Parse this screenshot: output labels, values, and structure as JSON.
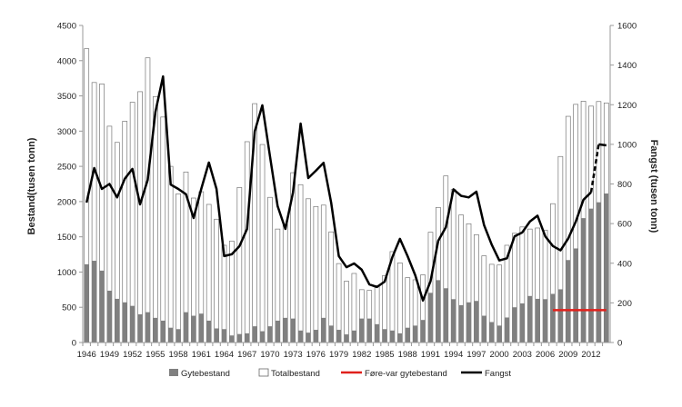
{
  "chart_data": {
    "type": "bar",
    "title": "",
    "xlabel": "",
    "ylabel": "Bestand(tusen tonn)",
    "ylabel_right": "Fangst (tusen tonn)",
    "ylim": [
      0,
      4500
    ],
    "ylim_right": [
      0,
      1600
    ],
    "yticks": [
      0,
      500,
      1000,
      1500,
      2000,
      2500,
      3000,
      3500,
      4000,
      4500
    ],
    "yticks_right": [
      0,
      200,
      400,
      600,
      800,
      1000,
      1200,
      1400,
      1600
    ],
    "xtick_labels": [
      "1946",
      "1949",
      "1952",
      "1955",
      "1958",
      "1961",
      "1964",
      "1967",
      "1970",
      "1973",
      "1976",
      "1979",
      "1982",
      "1985",
      "1988",
      "1991",
      "1994",
      "1997",
      "2000",
      "2003",
      "2006",
      "2009",
      "2012"
    ],
    "legend_position": "bottom",
    "grid": false,
    "colors": {
      "gytebestand": "#808080",
      "totalbestand": "#ffffff",
      "fore_var": "#e0201b",
      "fangst": "#000000"
    },
    "x": [
      1946,
      1947,
      1948,
      1949,
      1950,
      1951,
      1952,
      1953,
      1954,
      1955,
      1956,
      1957,
      1958,
      1959,
      1960,
      1961,
      1962,
      1963,
      1964,
      1965,
      1966,
      1967,
      1968,
      1969,
      1970,
      1971,
      1972,
      1973,
      1974,
      1975,
      1976,
      1977,
      1978,
      1979,
      1980,
      1981,
      1982,
      1983,
      1984,
      1985,
      1986,
      1987,
      1988,
      1989,
      1990,
      1991,
      1992,
      1993,
      1994,
      1995,
      1996,
      1997,
      1998,
      1999,
      2000,
      2001,
      2002,
      2003,
      2004,
      2005,
      2006,
      2007,
      2008,
      2009,
      2010,
      2011,
      2012,
      2013,
      2014
    ],
    "series": [
      {
        "name": "Gytebestand",
        "kind": "bar",
        "axis": "left",
        "values": [
          1110,
          1160,
          1020,
          735,
          620,
          570,
          520,
          400,
          430,
          350,
          310,
          210,
          190,
          430,
          380,
          410,
          310,
          200,
          190,
          100,
          120,
          130,
          230,
          160,
          230,
          310,
          350,
          340,
          170,
          140,
          180,
          350,
          240,
          180,
          115,
          170,
          340,
          340,
          260,
          190,
          170,
          130,
          210,
          240,
          320,
          705,
          885,
          770,
          615,
          530,
          570,
          590,
          380,
          290,
          240,
          355,
          500,
          555,
          660,
          620,
          615,
          690,
          755,
          1170,
          1335,
          1765,
          1900,
          1990,
          2115
        ]
      },
      {
        "name": "Totalbestand",
        "kind": "bar",
        "axis": "left",
        "values": [
          4170,
          3690,
          3670,
          3070,
          2840,
          3140,
          3410,
          3560,
          4040,
          3490,
          3200,
          2500,
          2110,
          2420,
          2050,
          2140,
          1960,
          1750,
          1380,
          1440,
          2200,
          2850,
          3390,
          2810,
          2060,
          1610,
          1680,
          2410,
          2240,
          2040,
          1930,
          1950,
          1570,
          1120,
          870,
          980,
          750,
          740,
          810,
          950,
          1290,
          1130,
          920,
          890,
          960,
          1565,
          1917,
          2364,
          2170,
          1810,
          1685,
          1530,
          1230,
          1110,
          1100,
          1380,
          1550,
          1640,
          1610,
          1625,
          1595,
          1970,
          2640,
          3210,
          3380,
          3425,
          3355,
          3420,
          3400
        ]
      },
      {
        "name": "Føre-var gytebestand",
        "kind": "line",
        "axis": "left",
        "x": [
          2007,
          2014
        ],
        "values": [
          460,
          460
        ]
      },
      {
        "name": "Fangst",
        "kind": "line",
        "axis": "right",
        "dashed_segment": [
          2012,
          2013
        ],
        "values": [
          706,
          880,
          775,
          800,
          732,
          826,
          876,
          697,
          820,
          1163,
          1343,
          797,
          775,
          748,
          628,
          775,
          908,
          775,
          436,
          445,
          486,
          573,
          1065,
          1197,
          940,
          688,
          573,
          757,
          1105,
          830,
          867,
          907,
          705,
          436,
          380,
          399,
          367,
          293,
          280,
          307,
          430,
          523,
          436,
          339,
          212,
          310,
          513,
          582,
          773,
          740,
          732,
          761,
          593,
          494,
          414,
          425,
          536,
          555,
          610,
          640,
          536,
          487,
          465,
          524,
          610,
          720,
          758,
          1000,
          995
        ]
      }
    ]
  }
}
